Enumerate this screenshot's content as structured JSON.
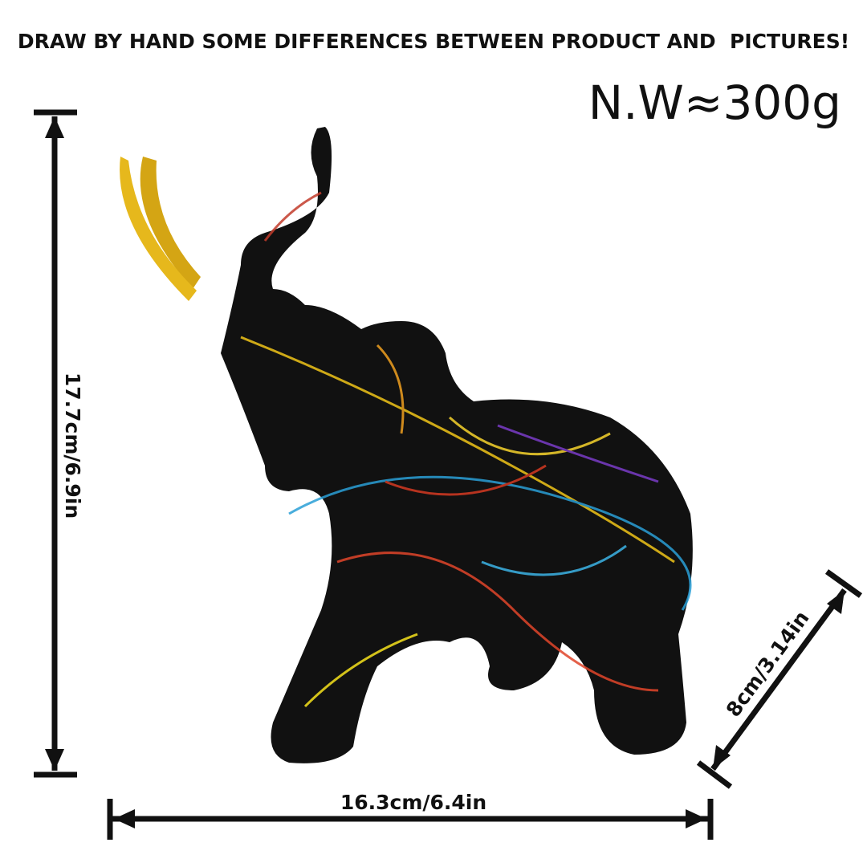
{
  "header": {
    "note": "DRAW BY HAND SOME DIFFERENCES BETWEEN PRODUCT AND  PICTURES!"
  },
  "weight": "N.W≈300g",
  "dimensions": {
    "height": "17.7cm/6.9in",
    "width": "16.3cm/6.4in",
    "depth": "8cm/3.14in"
  }
}
